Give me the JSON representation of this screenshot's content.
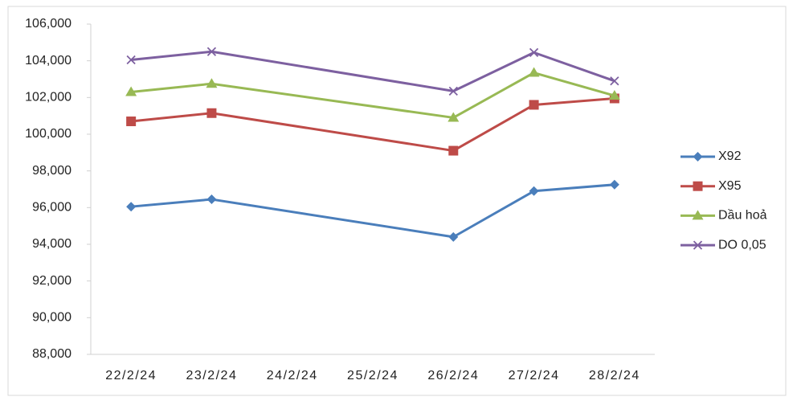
{
  "chart_data": {
    "type": "line",
    "categories": [
      "22/2/24",
      "23/2/24",
      "24/2/24",
      "25/2/24",
      "26/2/24",
      "27/2/24",
      "28/2/24"
    ],
    "series": [
      {
        "name": "X92",
        "color": "#4a7ebb",
        "marker": "diamond",
        "values": [
          96050,
          96450,
          null,
          null,
          94400,
          96900,
          97250
        ]
      },
      {
        "name": "X95",
        "color": "#be4b48",
        "marker": "square",
        "values": [
          100700,
          101150,
          null,
          null,
          99100,
          101600,
          101950
        ]
      },
      {
        "name": "Dầu hoả",
        "color": "#98b954",
        "marker": "triangle",
        "values": [
          102300,
          102750,
          null,
          null,
          100900,
          103350,
          102100
        ]
      },
      {
        "name": "DO 0,05",
        "color": "#7d60a0",
        "marker": "x",
        "values": [
          104050,
          104500,
          null,
          null,
          102350,
          104450,
          102900
        ]
      }
    ],
    "connect_gaps": true,
    "ylim": [
      88000,
      106000
    ],
    "yticks": [
      {
        "value": 88000,
        "label": "88,000"
      },
      {
        "value": 90000,
        "label": "90,000"
      },
      {
        "value": 92000,
        "label": "92,000"
      },
      {
        "value": 94000,
        "label": "94,000"
      },
      {
        "value": 96000,
        "label": "96,000"
      },
      {
        "value": 98000,
        "label": "98,000"
      },
      {
        "value": 100000,
        "label": "100,000"
      },
      {
        "value": 102000,
        "label": "102,000"
      },
      {
        "value": 104000,
        "label": "104,000"
      },
      {
        "value": 106000,
        "label": "106,000"
      }
    ],
    "grid": false,
    "legend": "right"
  }
}
